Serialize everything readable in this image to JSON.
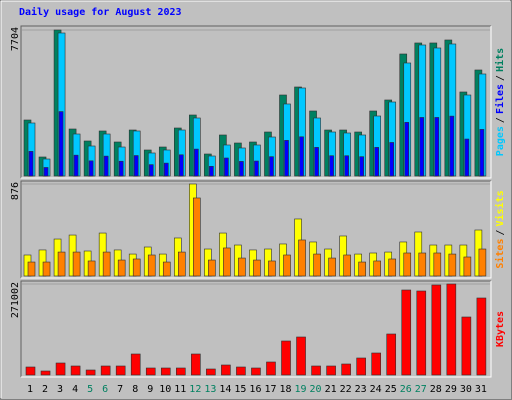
{
  "chart_data": [
    {
      "type": "bar",
      "title": "Daily usage for August 2023",
      "ylim": [
        0,
        7704
      ],
      "yticks": [
        7704
      ],
      "separator": "/",
      "series": [
        {
          "name": "Hits",
          "color": "#008060",
          "values": [
            2955,
            1003,
            7704,
            2480,
            1847,
            2375,
            1794,
            2427,
            1372,
            1530,
            2533,
            3219,
            1161,
            2164,
            1741,
            1794,
            2322,
            4274,
            4697,
            3430,
            2427,
            2427,
            2322,
            3430,
            4011,
            6438,
            7019,
            7019,
            7177,
            4433,
            5594
          ]
        },
        {
          "name": "Files",
          "color": "#0000ff",
          "values": [
            1300,
            450,
            3400,
            1100,
            800,
            1050,
            780,
            1080,
            600,
            680,
            1120,
            1420,
            510,
            950,
            770,
            790,
            1020,
            1880,
            2070,
            1510,
            1070,
            1070,
            1020,
            1510,
            1770,
            2830,
            3090,
            3090,
            3160,
            1950,
            2460
          ]
        },
        {
          "name": "Pages",
          "color": "#00c8ff",
          "values": [
            2797,
            897,
            7546,
            2216,
            1583,
            2216,
            1530,
            2375,
            1214,
            1372,
            2427,
            3061,
            1055,
            1636,
            1478,
            1636,
            2058,
            3800,
            4644,
            3061,
            2322,
            2269,
            2164,
            3166,
            3905,
            5963,
            6913,
            6755,
            6966,
            4274,
            5383
          ]
        }
      ]
    },
    {
      "type": "bar",
      "ylim": [
        0,
        876
      ],
      "yticks": [
        876
      ],
      "separator": "/",
      "series": [
        {
          "name": "Visits",
          "color": "#ffff00",
          "values": [
            200,
            248,
            352,
            390,
            238,
            409,
            248,
            209,
            276,
            209,
            362,
            876,
            257,
            409,
            295,
            248,
            257,
            305,
            543,
            324,
            257,
            381,
            209,
            219,
            228,
            324,
            419,
            295,
            295,
            295,
            438
          ]
        },
        {
          "name": "Sites",
          "color": "#ff8000",
          "values": [
            133,
            133,
            228,
            228,
            143,
            228,
            152,
            162,
            200,
            133,
            228,
            743,
            152,
            267,
            171,
            152,
            143,
            200,
            343,
            209,
            171,
            200,
            133,
            143,
            162,
            219,
            219,
            219,
            209,
            181,
            257
          ]
        }
      ]
    },
    {
      "type": "bar",
      "ylim": [
        0,
        271002
      ],
      "yticks": [
        271002
      ],
      "categories": [
        "1",
        "2",
        "3",
        "4",
        "5",
        "6",
        "7",
        "8",
        "9",
        "10",
        "11",
        "12",
        "13",
        "14",
        "15",
        "16",
        "17",
        "18",
        "19",
        "20",
        "21",
        "22",
        "23",
        "24",
        "25",
        "26",
        "27",
        "28",
        "29",
        "30",
        "31"
      ],
      "weekend": [
        false,
        false,
        false,
        false,
        true,
        true,
        false,
        false,
        false,
        false,
        false,
        true,
        true,
        false,
        false,
        false,
        false,
        false,
        true,
        true,
        false,
        false,
        false,
        false,
        false,
        true,
        true,
        false,
        false,
        false,
        false
      ],
      "series": [
        {
          "name": "KBytes",
          "color": "#ff0000",
          "values": [
            23824,
            11912,
            35736,
            26802,
            14890,
            26802,
            26802,
            62538,
            20846,
            20846,
            20846,
            62538,
            17868,
            29780,
            23824,
            20846,
            38714,
            101252,
            113164,
            26802,
            26802,
            32758,
            50626,
            65516,
            122098,
            253130,
            250152,
            268020,
            271002,
            172724,
            229306
          ]
        }
      ]
    }
  ]
}
